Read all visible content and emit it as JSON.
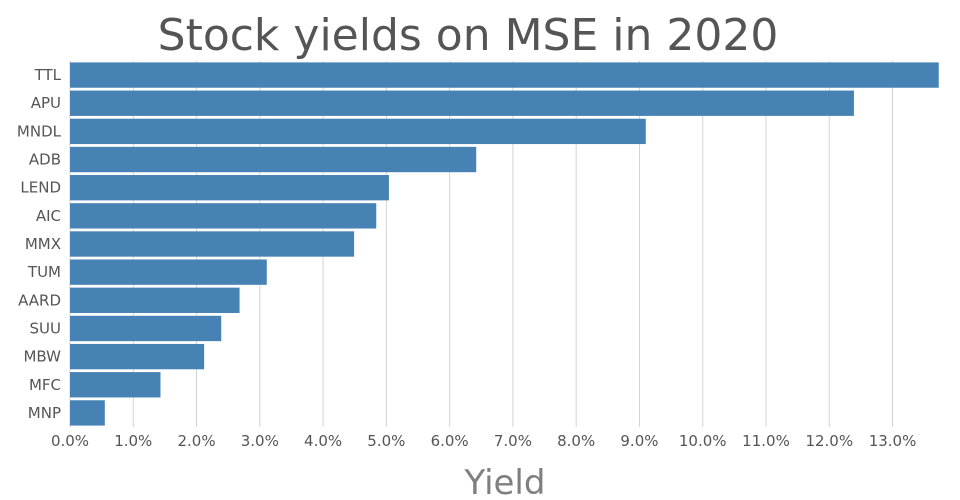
{
  "chart_data": {
    "type": "bar",
    "orientation": "horizontal",
    "title": "Stock yields on MSE in 2020",
    "xlabel": "Yield",
    "ylabel": "",
    "categories": [
      "TTL",
      "APU",
      "MNDL",
      "ADB",
      "LEND",
      "AIC",
      "MMX",
      "TUM",
      "AARD",
      "SUU",
      "MBW",
      "MFC",
      "MNP"
    ],
    "values": [
      13.73,
      12.39,
      9.1,
      6.42,
      5.04,
      4.84,
      4.49,
      3.11,
      2.68,
      2.39,
      2.12,
      1.43,
      0.55
    ],
    "xlim": [
      0,
      13.75
    ],
    "xticks": [
      0,
      1,
      2,
      3,
      4,
      5,
      6,
      7,
      8,
      9,
      10,
      11,
      12,
      13
    ],
    "xtick_labels": [
      "0.0%",
      "1.0%",
      "2.0%",
      "3.0%",
      "4.0%",
      "5.0%",
      "6.0%",
      "7.0%",
      "8.0%",
      "9.0%",
      "10.0%",
      "11.0%",
      "12.0%",
      "13.0%"
    ],
    "grid": true,
    "bar_color": "#4682b4"
  }
}
